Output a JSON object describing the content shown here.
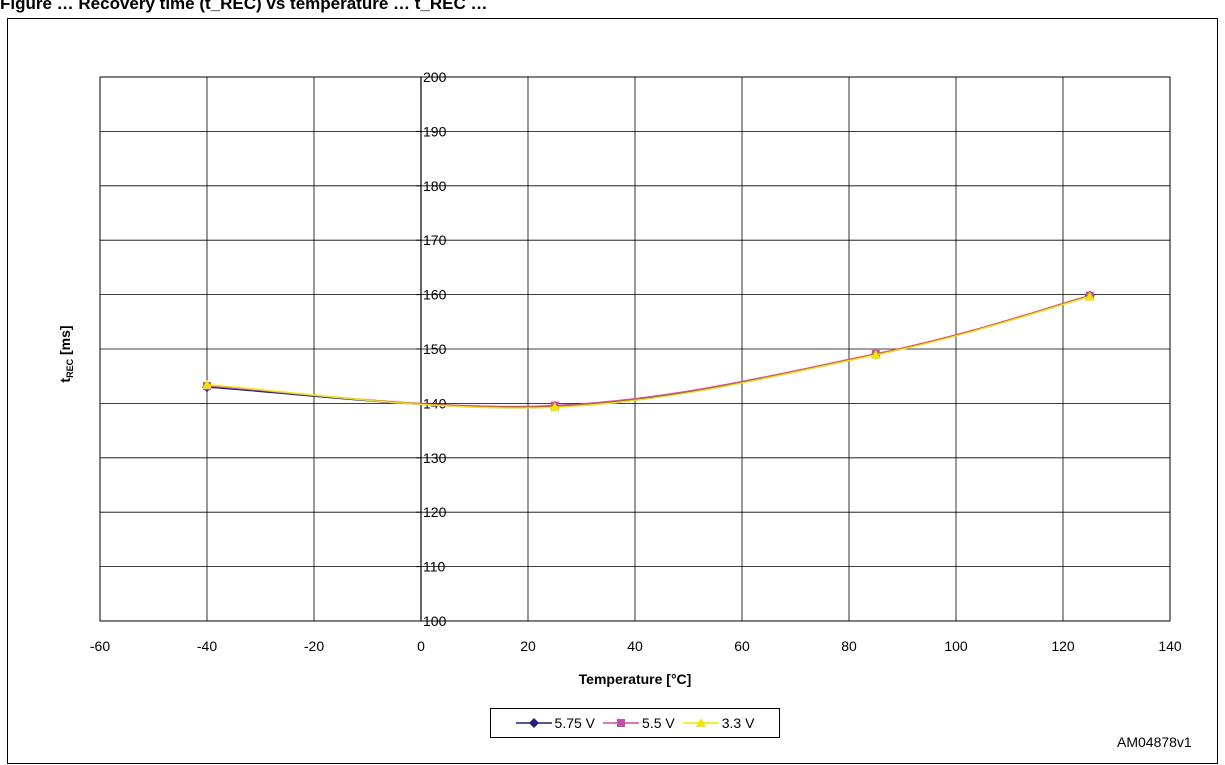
{
  "figure": {
    "title": "Figure … Recovery time (t_REC) vs temperature … t_REC …",
    "watermark": "AM04878v1"
  },
  "chart_data": {
    "type": "line",
    "xlabel": "Temperature [°C]",
    "ylabel_main": "t",
    "ylabel_sub": "REC",
    "ylabel_unit": " [ms]",
    "xlim": [
      -60,
      140
    ],
    "ylim": [
      100,
      200
    ],
    "xticks": [
      -60,
      -40,
      -20,
      0,
      20,
      40,
      60,
      80,
      100,
      120,
      140
    ],
    "yticks": [
      100,
      110,
      120,
      130,
      140,
      150,
      160,
      170,
      180,
      190,
      200
    ],
    "grid": true,
    "legend_position": "bottom",
    "series": [
      {
        "name": "5.75 V",
        "color": "#1f1f7a",
        "marker": "diamond",
        "x": [
          -40,
          25,
          85,
          125
        ],
        "y": [
          143.0,
          139.5,
          149.0,
          159.8
        ]
      },
      {
        "name": "5.5 V",
        "color": "#c64fa9",
        "marker": "square",
        "x": [
          -40,
          25,
          85,
          125
        ],
        "y": [
          143.2,
          139.6,
          149.1,
          159.8
        ]
      },
      {
        "name": "3.3 V",
        "color": "#f2e600",
        "marker": "triangle",
        "x": [
          -40,
          25,
          85,
          125
        ],
        "y": [
          143.4,
          139.3,
          148.9,
          159.6
        ]
      }
    ]
  }
}
